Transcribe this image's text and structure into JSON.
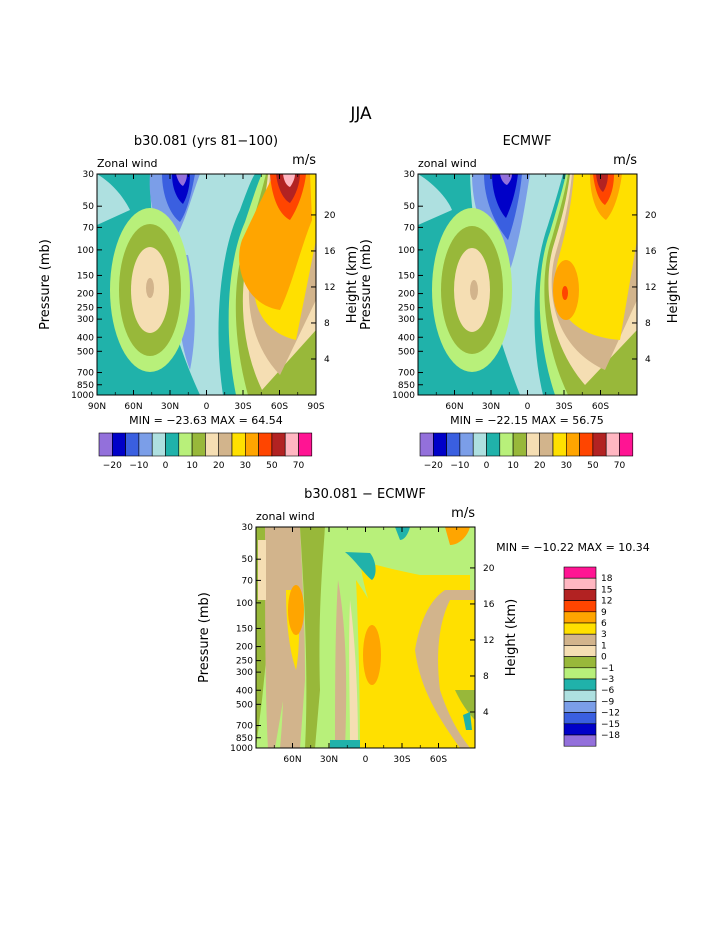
{
  "main_title": "JJA",
  "chart_data": [
    {
      "type": "heatmap",
      "title": "b30.081 (yrs 81−100)",
      "subtitle_left": "Zonal wind",
      "units": "m/s",
      "ylabel": "Pressure (mb)",
      "ylabel_right": "Height (km)",
      "xticks": [
        "90N",
        "60N",
        "30N",
        "0",
        "30S",
        "60S",
        "90S"
      ],
      "yticks": [
        "30",
        "50",
        "70",
        "100",
        "150",
        "200",
        "250",
        "300",
        "400",
        "500",
        "700",
        "850",
        "1000"
      ],
      "yticks_right": [
        "20",
        "16",
        "12",
        "8",
        "4"
      ],
      "y_scale": "log",
      "ylim": [
        1000,
        30
      ],
      "xlim": [
        "90N",
        "90S"
      ],
      "stats": "MIN = −23.63   MAX =  64.54",
      "legend_position": "bottom",
      "levels": [
        -20,
        -15,
        -10,
        -5,
        0,
        5,
        10,
        15,
        20,
        25,
        30,
        40,
        50,
        60,
        70
      ],
      "level_labels": [
        "−20",
        "−10",
        "0",
        "10",
        "20",
        "30",
        "50",
        "70"
      ],
      "colors": [
        "#9370db",
        "#0000c8",
        "#3a5fe0",
        "#7b9ee8",
        "#aee0e0",
        "#20b2aa",
        "#b8f07a",
        "#98b83a",
        "#f5deb3",
        "#d2b48c",
        "#ffe000",
        "#ffa500",
        "#ff4500",
        "#b22222",
        "#ffb6c1",
        "#ff1493"
      ],
      "features": {
        "westerly_jet_max": {
          "lat": -60,
          "pressure": 30,
          "value": 64.54
        },
        "subtropical_jet_core": {
          "lat": -35,
          "pressure": 200,
          "value": 37
        },
        "easterly_min": {
          "lat": 15,
          "pressure": 30,
          "value": -23.63
        },
        "nh_jet_core": {
          "lat": 42,
          "pressure": 200,
          "value": 22
        }
      }
    },
    {
      "type": "heatmap",
      "title": "ECMWF",
      "subtitle_left": "zonal wind",
      "units": "m/s",
      "ylabel": "Pressure (mb)",
      "ylabel_right": "Height (km)",
      "xticks": [
        "60N",
        "30N",
        "0",
        "30S",
        "60S"
      ],
      "yticks": [
        "30",
        "50",
        "70",
        "100",
        "150",
        "200",
        "250",
        "300",
        "400",
        "500",
        "700",
        "850",
        "1000"
      ],
      "yticks_right": [
        "20",
        "16",
        "12",
        "8",
        "4"
      ],
      "y_scale": "log",
      "ylim": [
        1000,
        30
      ],
      "stats": "MIN = −22.15   MAX =  56.75",
      "legend_position": "bottom",
      "levels": [
        -20,
        -15,
        -10,
        -5,
        0,
        5,
        10,
        15,
        20,
        25,
        30,
        40,
        50,
        60,
        70
      ],
      "level_labels": [
        "−20",
        "−10",
        "0",
        "10",
        "20",
        "30",
        "50",
        "70"
      ],
      "colors": [
        "#9370db",
        "#0000c8",
        "#3a5fe0",
        "#7b9ee8",
        "#aee0e0",
        "#20b2aa",
        "#b8f07a",
        "#98b83a",
        "#f5deb3",
        "#d2b48c",
        "#ffe000",
        "#ffa500",
        "#ff4500",
        "#b22222",
        "#ffb6c1",
        "#ff1493"
      ],
      "features": {
        "westerly_jet_max": {
          "lat": -60,
          "pressure": 30,
          "value": 56.75
        },
        "subtropical_jet_core": {
          "lat": -30,
          "pressure": 200,
          "value": 42
        },
        "easterly_min": {
          "lat": 18,
          "pressure": 30,
          "value": -22.15
        },
        "nh_jet_core": {
          "lat": 42,
          "pressure": 200,
          "value": 22
        }
      }
    },
    {
      "type": "heatmap",
      "title": "b30.081 − ECMWF",
      "subtitle_left": "zonal wind",
      "units": "m/s",
      "ylabel": "Pressure (mb)",
      "ylabel_right": "Height (km)",
      "xticks": [
        "60N",
        "30N",
        "0",
        "30S",
        "60S"
      ],
      "yticks": [
        "30",
        "50",
        "70",
        "100",
        "150",
        "200",
        "250",
        "300",
        "400",
        "500",
        "700",
        "850",
        "1000"
      ],
      "yticks_right": [
        "20",
        "16",
        "12",
        "8",
        "4"
      ],
      "y_scale": "log",
      "ylim": [
        1000,
        30
      ],
      "stats": "MIN = −10.22   MAX =  10.34",
      "legend_position": "right",
      "levels": [
        -18,
        -15,
        -12,
        -9,
        -6,
        -3,
        -1,
        0,
        1,
        3,
        6,
        9,
        12,
        15,
        18
      ],
      "level_labels": [
        "18",
        "15",
        "12",
        "9",
        "6",
        "3",
        "1",
        "0",
        "−1",
        "−3",
        "−6",
        "−9",
        "−12",
        "−15",
        "−18"
      ],
      "colors": [
        "#9370db",
        "#0000c8",
        "#3a5fe0",
        "#7b9ee8",
        "#aee0e0",
        "#20b2aa",
        "#b8f07a",
        "#98b83a",
        "#f5deb3",
        "#d2b48c",
        "#ffe000",
        "#ffa500",
        "#ff4500",
        "#b22222",
        "#ffb6c1",
        "#ff1493"
      ]
    }
  ]
}
